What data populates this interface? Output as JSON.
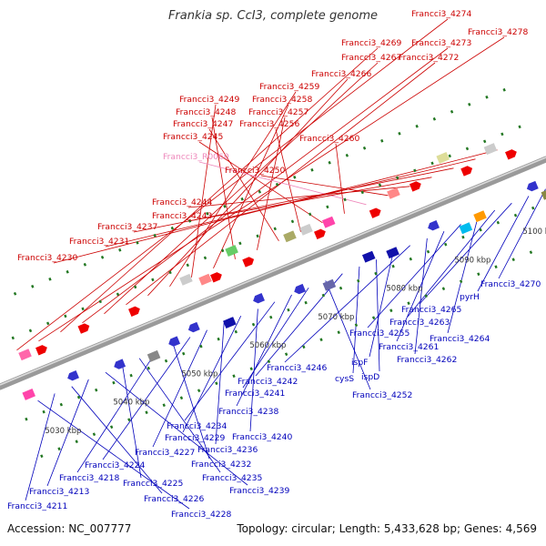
{
  "title": "Frankia sp. CcI3, complete genome",
  "footer": {
    "accession_label": "Accession:",
    "accession": "NC_007777",
    "topology_label": "Topology:",
    "topology": "circular",
    "length_label": "Length:",
    "length": "5,433,628 bp",
    "genes_label": "Genes:",
    "genes": "4,569"
  },
  "colors": {
    "upper_labels": "#cc0000",
    "lower_labels": "#0000bb",
    "rna_label": "#ee88bb",
    "backbone": "#9a9a9a",
    "tick": "#227722"
  },
  "kbp_labels": [
    "5030 kbp",
    "5040 kbp",
    "5050 kbp",
    "5060 kbp",
    "5070 kbp",
    "5080 kbp",
    "5090 kbp",
    "5100 kbp"
  ],
  "upper_labels": [
    "Francci3_4274",
    "Francci3_4278",
    "Francci3_4269",
    "Francci3_4273",
    "Francci3_4267",
    "Francci3_4272",
    "Francci3_4266",
    "Francci3_4259",
    "Francci3_4249",
    "Francci3_4258",
    "Francci3_4248",
    "Francci3_4257",
    "Francci3_4247",
    "Francci3_4256",
    "Francci3_4245",
    "Francci3_4260",
    "Francci3_R0060",
    "Francci3_4250",
    "Francci3_4244",
    "Francci3_4243",
    "Francci3_4237",
    "Francci3_4231",
    "Francci3_4230"
  ],
  "lower_labels": [
    "Francci3_4270",
    "pyrH",
    "Francci3_4265",
    "Francci3_4263",
    "Francci3_4264",
    "Francci3_4255",
    "Francci3_4261",
    "Francci3_4262",
    "Francci3_4246",
    "ispF",
    "ispD",
    "cysS",
    "Francci3_4242",
    "Francci3_4252",
    "Francci3_4241",
    "Francci3_4238",
    "Francci3_4234",
    "Francci3_4240",
    "Francci3_4229",
    "Francci3_4236",
    "Francci3_4227",
    "Francci3_4224",
    "Francci3_4232",
    "Francci3_4218",
    "Francci3_4235",
    "Francci3_4225",
    "Francci3_4239",
    "Francci3_4213",
    "Francci3_4226",
    "Francci3_4211",
    "Francci3_4228"
  ]
}
